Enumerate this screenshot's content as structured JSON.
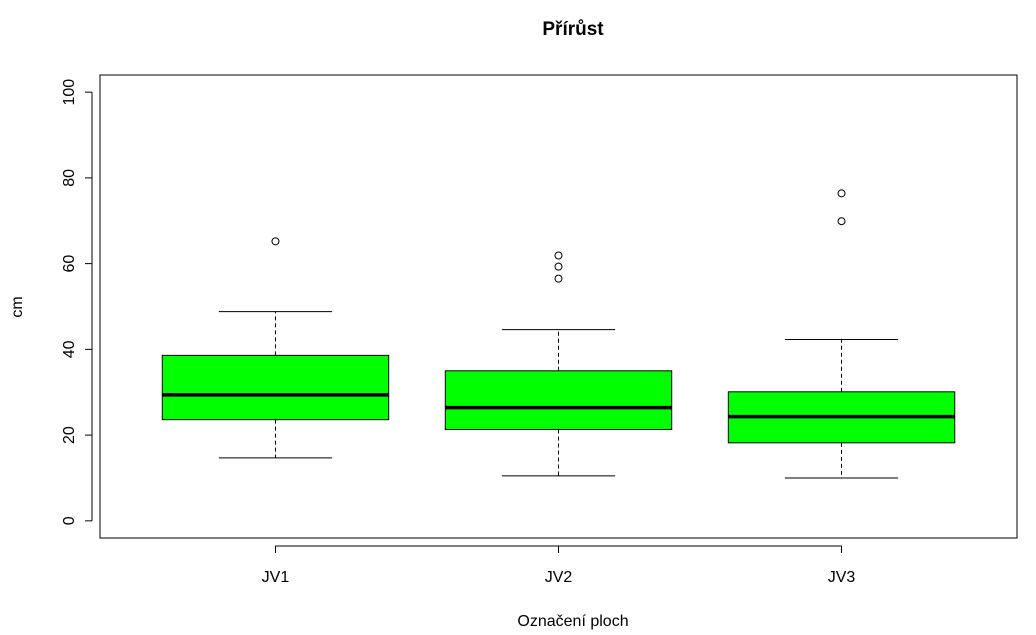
{
  "chart_data": {
    "type": "box",
    "title": "Přírůst",
    "x_label": "Označení ploch",
    "y_label": "cm",
    "categories": [
      "JV1",
      "JV2",
      "JV3"
    ],
    "color": "#00ff00",
    "boxes": [
      {
        "whisker_low": 14.7,
        "q1": 23.6,
        "median": 29.4,
        "q3": 38.6,
        "whisker_high": 48.8,
        "outliers": [
          65.2
        ]
      },
      {
        "whisker_low": 10.5,
        "q1": 21.3,
        "median": 26.4,
        "q3": 35.0,
        "whisker_high": 44.6,
        "outliers": [
          61.9,
          59.3,
          56.5
        ]
      },
      {
        "whisker_low": 10.0,
        "q1": 18.2,
        "median": 24.3,
        "q3": 30.1,
        "whisker_high": 42.3,
        "outliers": [
          76.4,
          69.9
        ]
      }
    ],
    "ylim": [
      -4,
      104
    ],
    "yticks": [
      0,
      20,
      40,
      60,
      80,
      100
    ]
  }
}
